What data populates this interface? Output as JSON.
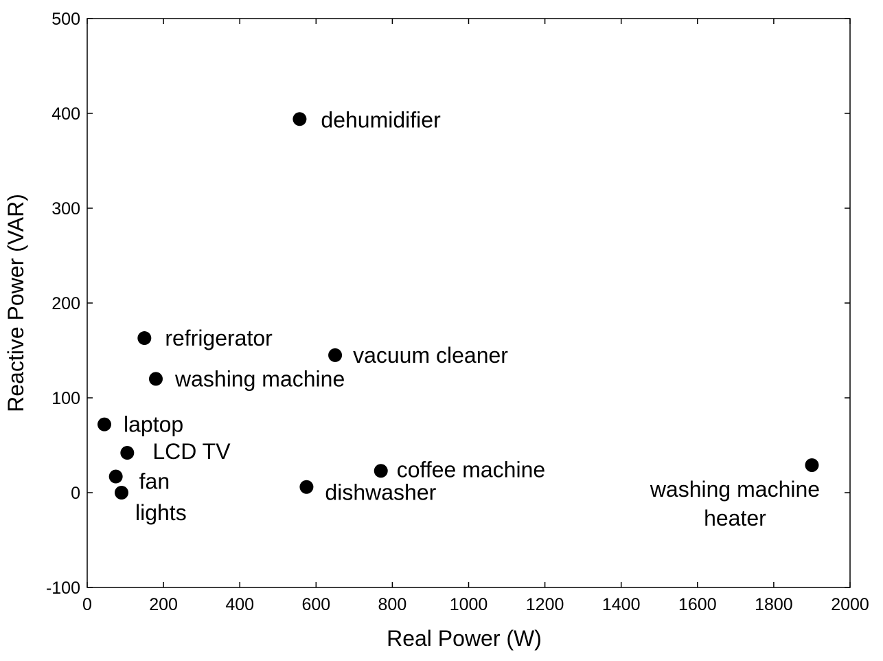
{
  "chart_data": {
    "type": "scatter",
    "xlabel": "Real Power (W)",
    "ylabel": "Reactive Power (VAR)",
    "xlim": [
      0,
      2000
    ],
    "ylim": [
      -100,
      500
    ],
    "xticks": [
      0,
      200,
      400,
      600,
      800,
      1000,
      1200,
      1400,
      1600,
      1800,
      2000
    ],
    "yticks": [
      -100,
      0,
      100,
      200,
      300,
      400,
      500
    ],
    "grid": false,
    "legend": "none",
    "marker_color": "#000000",
    "points": [
      {
        "label": "dehumidifier",
        "x": 557,
        "y": 394
      },
      {
        "label": "refrigerator",
        "x": 150,
        "y": 163
      },
      {
        "label": "vacuum cleaner",
        "x": 650,
        "y": 145
      },
      {
        "label": "washing machine",
        "x": 180,
        "y": 120
      },
      {
        "label": "laptop",
        "x": 45,
        "y": 72
      },
      {
        "label": "LCD TV",
        "x": 105,
        "y": 42
      },
      {
        "label": "fan",
        "x": 75,
        "y": 17
      },
      {
        "label": "lights",
        "x": 90,
        "y": 0
      },
      {
        "label": "dishwasher",
        "x": 575,
        "y": 6
      },
      {
        "label": "coffee machine",
        "x": 770,
        "y": 23
      },
      {
        "label": "washing machine heater",
        "label_lines": [
          "washing machine",
          "heater"
        ],
        "x": 1900,
        "y": 29
      }
    ]
  }
}
